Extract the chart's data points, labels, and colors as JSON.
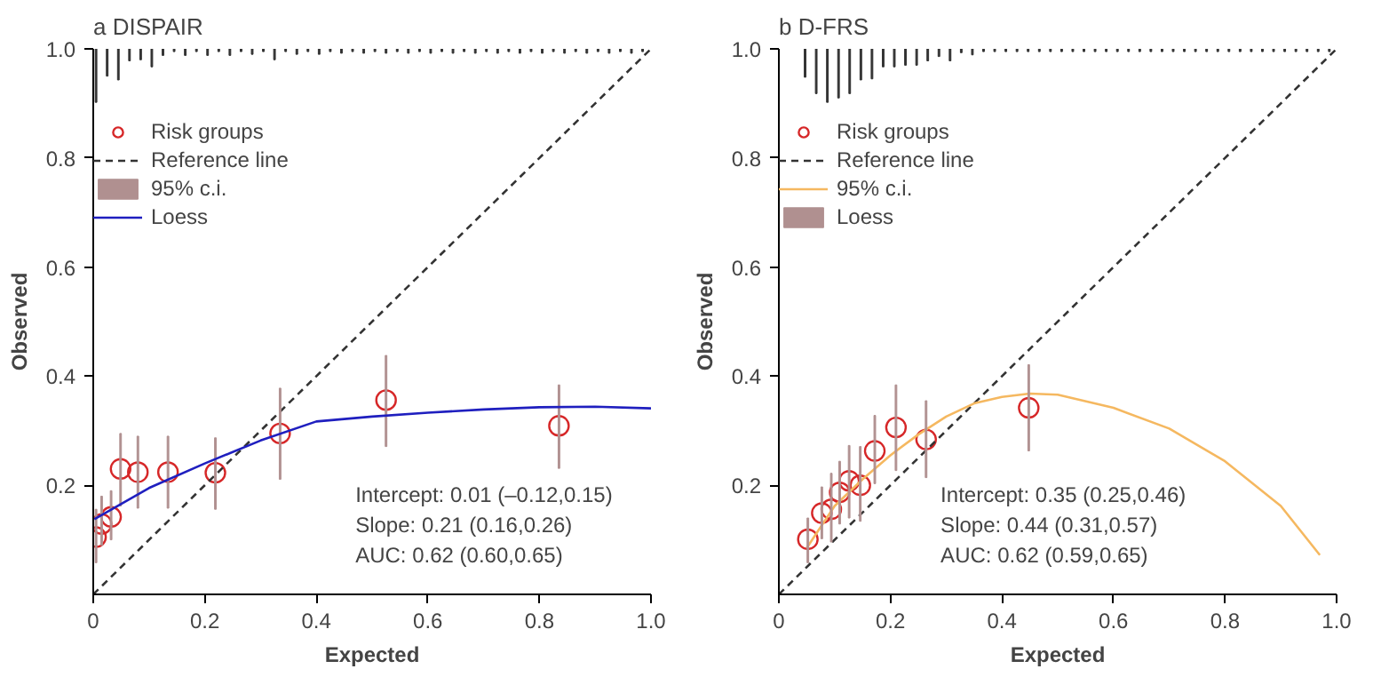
{
  "chart_data": [
    {
      "type": "scatter",
      "title": "a DISPAIR",
      "xlabel": "Expected",
      "ylabel": "Observed",
      "xlim": [
        0,
        1
      ],
      "ylim": [
        0,
        1
      ],
      "xticks": [
        0,
        0.2,
        0.4,
        0.6,
        0.8,
        {
          "value": 1,
          "label": "1.0"
        }
      ],
      "yticks": [
        0.2,
        0.4,
        0.6,
        0.8,
        {
          "value": 1,
          "label": "1.0"
        }
      ],
      "legend": "top left",
      "annotations": [
        "Intercept: 0.01 (–0.12,0.15)",
        "Slope: 0.21 (0.16,0.26)",
        "AUC: 0.62 (0.60,0.65)"
      ],
      "series": [
        {
          "type": "bar",
          "color": "#333333",
          "x": [
            0.005,
            0.025,
            0.045,
            0.065,
            0.085,
            0.105,
            0.125,
            0.145,
            0.165,
            0.185,
            0.205,
            0.225,
            0.245,
            0.265,
            0.285,
            0.305,
            0.325,
            0.345,
            0.365,
            0.385,
            0.405,
            0.425,
            0.445,
            0.465,
            0.485,
            0.505,
            0.525,
            0.545,
            0.565,
            0.585,
            0.605,
            0.625,
            0.645,
            0.665,
            0.685,
            0.705,
            0.725,
            0.745,
            0.765,
            0.785,
            0.805,
            0.825,
            0.845,
            0.865,
            0.885,
            0.905,
            0.925,
            0.945,
            0.965,
            0.985
          ],
          "base": [
            1,
            1,
            1,
            1,
            1,
            1,
            1,
            1,
            1,
            1,
            1,
            1,
            1,
            1,
            1,
            1,
            1,
            1,
            1,
            1,
            1,
            1,
            1,
            1,
            1,
            1,
            1,
            1,
            1,
            1,
            1,
            1,
            1,
            1,
            1,
            1,
            1,
            1,
            1,
            1,
            1,
            1,
            1,
            1,
            1,
            1,
            1,
            1,
            1,
            1
          ],
          "values": [
            -0.098,
            -0.05,
            -0.057,
            -0.022,
            -0.02,
            -0.033,
            -0.012,
            -0.005,
            -0.012,
            -0.005,
            -0.012,
            -0.005,
            -0.012,
            -0.005,
            -0.01,
            -0.005,
            -0.02,
            -0.005,
            -0.01,
            -0.005,
            -0.01,
            -0.005,
            -0.008,
            -0.005,
            -0.008,
            -0.005,
            -0.008,
            -0.005,
            -0.008,
            -0.005,
            -0.008,
            -0.005,
            -0.008,
            -0.005,
            -0.008,
            -0.005,
            -0.008,
            -0.005,
            -0.008,
            -0.005,
            -0.008,
            -0.005,
            -0.008,
            -0.005,
            -0.008,
            -0.005,
            -0.008,
            -0.005,
            -0.008,
            -0.005
          ]
        },
        {
          "name": "Risk groups",
          "color": "#d62728",
          "marker": "circle",
          "x": [
            0.005,
            0.015,
            0.032,
            0.049,
            0.08,
            0.134,
            0.219,
            0.335,
            0.525,
            0.835
          ],
          "values": [
            0.105,
            0.129,
            0.142,
            0.23,
            0.224,
            0.224,
            0.223,
            0.295,
            0.356,
            0.309
          ]
        },
        {
          "type": "line",
          "name": "Reference line",
          "color": "#333333",
          "line_style": "dashed",
          "x": [
            0,
            1
          ],
          "values": [
            0,
            1
          ]
        },
        {
          "type": "bar",
          "name": "95% c.i.",
          "color": "#b09090",
          "x": [
            0.005,
            0.015,
            0.032,
            0.049,
            0.08,
            0.134,
            0.219,
            0.335,
            0.525,
            0.835
          ],
          "base": [
            0.058,
            0.09,
            0.1,
            0.162,
            0.158,
            0.158,
            0.156,
            0.211,
            0.271,
            0.231
          ],
          "values": [
            0.098,
            0.09,
            0.09,
            0.133,
            0.132,
            0.132,
            0.131,
            0.167,
            0.167,
            0.153
          ]
        },
        {
          "type": "line",
          "name": "Loess",
          "color": "#1f1fbf",
          "line_style": "solid",
          "x": [
            0.002,
            0.1,
            0.2,
            0.3,
            0.4,
            0.5,
            0.6,
            0.7,
            0.8,
            0.9,
            1.0
          ],
          "values": [
            0.138,
            0.195,
            0.24,
            0.282,
            0.317,
            0.326,
            0.333,
            0.339,
            0.343,
            0.344,
            0.341
          ]
        }
      ]
    },
    {
      "type": "scatter",
      "title": "b D-FRS",
      "xlabel": "Expected",
      "ylabel": "Observed",
      "xlim": [
        0,
        1
      ],
      "ylim": [
        0,
        1
      ],
      "xticks": [
        0,
        0.2,
        0.4,
        0.6,
        0.8,
        {
          "value": 1,
          "label": "1.0"
        }
      ],
      "yticks": [
        0.2,
        0.4,
        0.6,
        0.8,
        {
          "value": 1,
          "label": "1.0"
        }
      ],
      "legend": "top left",
      "annotations": [
        "Intercept: 0.35 (0.25,0.46)",
        "Slope: 0.44 (0.31,0.57)",
        "AUC: 0.62 (0.59,0.65)"
      ],
      "series": [
        {
          "type": "bar",
          "color": "#333333",
          "x": [
            0.047,
            0.067,
            0.087,
            0.107,
            0.127,
            0.147,
            0.167,
            0.187,
            0.207,
            0.227,
            0.247,
            0.267,
            0.287,
            0.307,
            0.327,
            0.347,
            0.367,
            0.387,
            0.407,
            0.427,
            0.447,
            0.467,
            0.487,
            0.507,
            0.527,
            0.547,
            0.567,
            0.587,
            0.607,
            0.627,
            0.647,
            0.667,
            0.687,
            0.707,
            0.727,
            0.747,
            0.767,
            0.787,
            0.807,
            0.827,
            0.847,
            0.867,
            0.887,
            0.907,
            0.927,
            0.947,
            0.967,
            0.987
          ],
          "base": [
            1,
            1,
            1,
            1,
            1,
            1,
            1,
            1,
            1,
            1,
            1,
            1,
            1,
            1,
            1,
            1,
            1,
            1,
            1,
            1,
            1,
            1,
            1,
            1,
            1,
            1,
            1,
            1,
            1,
            1,
            1,
            1,
            1,
            1,
            1,
            1,
            1,
            1,
            1,
            1,
            1,
            1,
            1,
            1,
            1,
            1,
            1,
            1
          ],
          "values": [
            -0.052,
            -0.082,
            -0.098,
            -0.09,
            -0.082,
            -0.057,
            -0.055,
            -0.033,
            -0.033,
            -0.03,
            -0.03,
            -0.022,
            -0.014,
            -0.022,
            -0.007,
            -0.011,
            -0.005,
            -0.005,
            -0.005,
            -0.005,
            -0.005,
            -0.005,
            -0.005,
            -0.005,
            -0.005,
            -0.005,
            -0.005,
            -0.005,
            -0.005,
            -0.005,
            -0.005,
            -0.005,
            -0.005,
            -0.005,
            -0.005,
            -0.005,
            -0.005,
            -0.005,
            -0.005,
            -0.005,
            -0.005,
            -0.005,
            -0.005,
            -0.005,
            -0.005,
            -0.005,
            -0.005,
            -0.005
          ]
        },
        {
          "name": "Risk groups",
          "color": "#d62728",
          "marker": "circle",
          "x": [
            0.052,
            0.077,
            0.094,
            0.109,
            0.126,
            0.146,
            0.172,
            0.21,
            0.264,
            0.448
          ],
          "values": [
            0.101,
            0.149,
            0.156,
            0.187,
            0.208,
            0.2,
            0.263,
            0.306,
            0.284,
            0.342
          ]
        },
        {
          "type": "line",
          "name": "Reference line",
          "color": "#333333",
          "line_style": "dashed",
          "x": [
            0,
            1
          ],
          "values": [
            0,
            1
          ]
        },
        {
          "type": "line",
          "name": "95% c.i.",
          "color": "#f5b860",
          "line_style": "solid",
          "x": [
            0.05,
            0.1,
            0.15,
            0.2,
            0.25,
            0.3,
            0.35,
            0.4,
            0.45,
            0.5,
            0.6,
            0.7,
            0.8,
            0.9,
            0.97
          ],
          "values": [
            0.085,
            0.162,
            0.211,
            0.255,
            0.293,
            0.326,
            0.35,
            0.362,
            0.368,
            0.366,
            0.342,
            0.304,
            0.244,
            0.162,
            0.072
          ]
        },
        {
          "type": "bar",
          "name": "Loess",
          "color": "#b09090",
          "x": [
            0.052,
            0.077,
            0.094,
            0.109,
            0.126,
            0.146,
            0.172,
            0.21,
            0.264,
            0.448
          ],
          "base": [
            0.058,
            0.102,
            0.096,
            0.129,
            0.14,
            0.134,
            0.203,
            0.227,
            0.214,
            0.263
          ],
          "values": [
            0.082,
            0.095,
            0.126,
            0.115,
            0.133,
            0.137,
            0.125,
            0.157,
            0.141,
            0.158
          ]
        }
      ]
    }
  ]
}
